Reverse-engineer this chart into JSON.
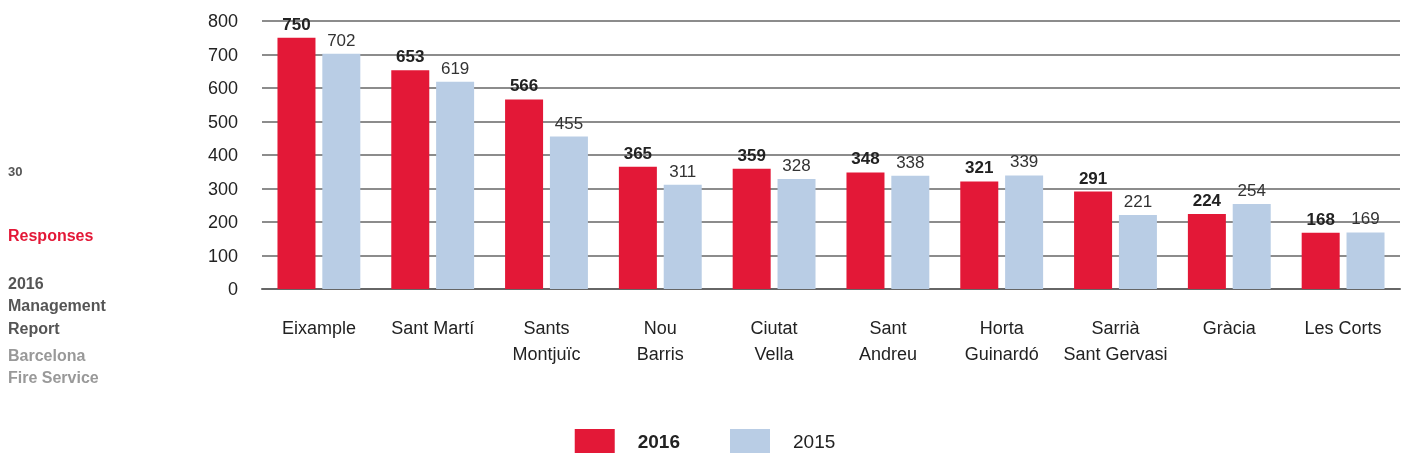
{
  "chart_data": {
    "type": "bar",
    "categories": [
      "Eixample",
      "Sant Martí",
      "Sants\nMontjuïc",
      "Nou\nBarris",
      "Ciutat\nVella",
      "Sant\nAndreu",
      "Horta\nGuinardó",
      "Sarrià\nSant Gervasi",
      "Gràcia",
      "Les Corts"
    ],
    "series": [
      {
        "name": "2016",
        "color": "#e31837",
        "values": [
          750,
          653,
          566,
          365,
          359,
          348,
          321,
          291,
          224,
          168
        ]
      },
      {
        "name": "2015",
        "color": "#b9cde5",
        "values": [
          702,
          619,
          455,
          311,
          328,
          338,
          339,
          221,
          254,
          169
        ]
      }
    ],
    "ylim": [
      0,
      800
    ],
    "yticks": [
      0,
      100,
      200,
      300,
      400,
      500,
      600,
      700,
      800
    ],
    "grid": "y",
    "legend": "bottom",
    "data_labels": true,
    "annotations": [
      "30",
      "Responses",
      "2016 Management Report",
      "Barcelona Fire Service"
    ]
  }
}
